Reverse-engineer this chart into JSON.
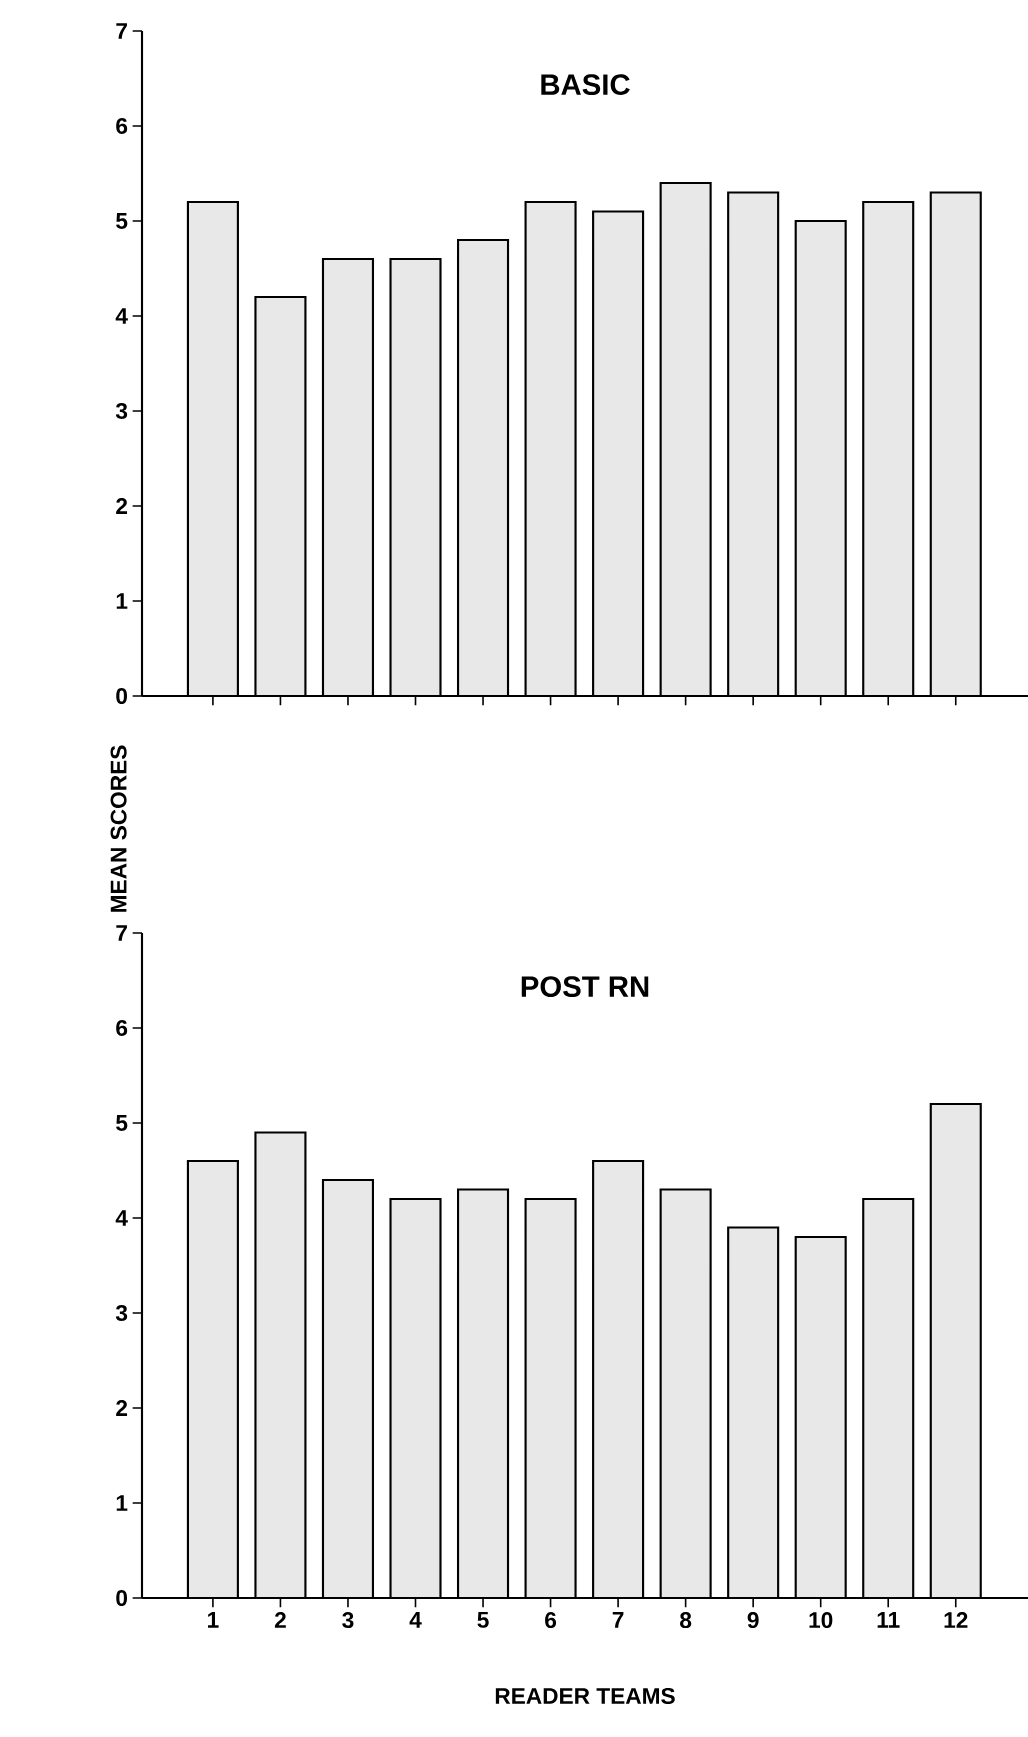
{
  "chart_data": [
    {
      "type": "bar",
      "title": "BASIC",
      "ylabel": "MEAN SCORES",
      "categories": [
        "1",
        "2",
        "3",
        "4",
        "5",
        "6",
        "7",
        "8",
        "9",
        "10",
        "11",
        "12"
      ],
      "values": [
        5.2,
        4.2,
        4.6,
        4.6,
        4.8,
        5.2,
        5.1,
        5.4,
        5.3,
        5.0,
        5.2,
        5.3
      ],
      "color": "#e8e8e8",
      "ylim": [
        0,
        7
      ],
      "yticks": [
        0,
        1,
        2,
        3,
        4,
        5,
        6,
        7
      ],
      "tick_labels": "y"
    },
    {
      "type": "bar",
      "title": "POST RN",
      "xlabel": "READER TEAMS",
      "categories": [
        "1",
        "2",
        "3",
        "4",
        "5",
        "6",
        "7",
        "8",
        "9",
        "10",
        "11",
        "12"
      ],
      "values": [
        4.6,
        4.9,
        4.4,
        4.2,
        4.3,
        4.2,
        4.6,
        4.3,
        3.9,
        3.8,
        4.2,
        5.2
      ],
      "color": "#e8e8e8",
      "ylim": [
        0,
        7
      ],
      "yticks": [
        0,
        1,
        2,
        3,
        4,
        5,
        6,
        7
      ]
    }
  ]
}
